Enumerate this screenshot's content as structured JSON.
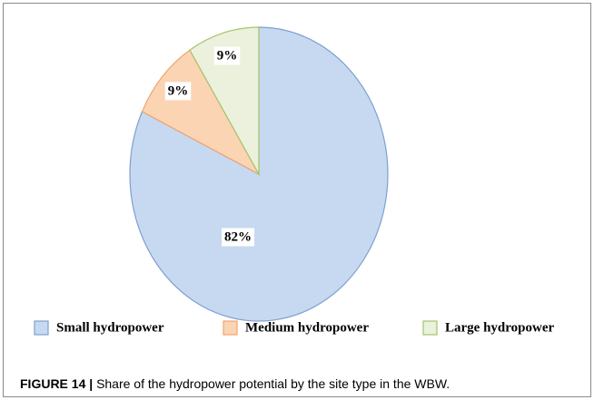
{
  "chart_data": {
    "type": "pie",
    "categories": [
      "Small hydropower",
      "Medium hydropower",
      "Large hydropower"
    ],
    "values": [
      82,
      9,
      9
    ],
    "value_labels": [
      "82%",
      "9%",
      "9%"
    ],
    "colors": [
      "#c6d9f1",
      "#fbd4b4",
      "#ebf1dd"
    ],
    "edge_colors": [
      "#7f9fd0",
      "#f2a46c",
      "#a5c467"
    ],
    "legend": "bottom"
  },
  "caption": {
    "label": "FIGURE 14 |",
    "text": "Share of the hydropower potential by the site type in the WBW."
  }
}
